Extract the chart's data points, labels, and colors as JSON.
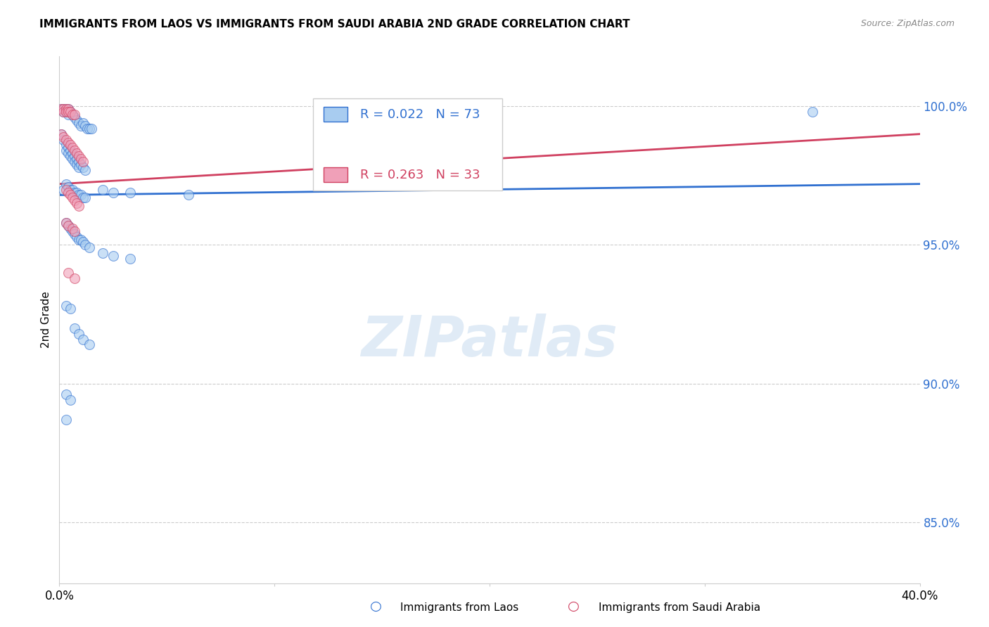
{
  "title": "IMMIGRANTS FROM LAOS VS IMMIGRANTS FROM SAUDI ARABIA 2ND GRADE CORRELATION CHART",
  "source": "Source: ZipAtlas.com",
  "ylabel": "2nd Grade",
  "xmin": 0.0,
  "xmax": 0.4,
  "ymin": 0.828,
  "ymax": 1.018,
  "yticks": [
    0.85,
    0.9,
    0.95,
    1.0
  ],
  "ytick_labels": [
    "85.0%",
    "90.0%",
    "95.0%",
    "100.0%"
  ],
  "color_blue": "#A8CCF0",
  "color_pink": "#F0A0B8",
  "color_blue_line": "#3070D0",
  "color_pink_line": "#D04060",
  "watermark_text": "ZIPatlas",
  "blue_trend": [
    0.0,
    0.4,
    0.968,
    0.972
  ],
  "pink_trend": [
    0.0,
    0.4,
    0.972,
    0.99
  ],
  "blue_points": [
    [
      0.001,
      0.999
    ],
    [
      0.002,
      0.999
    ],
    [
      0.002,
      0.998
    ],
    [
      0.003,
      0.999
    ],
    [
      0.003,
      0.998
    ],
    [
      0.004,
      0.999
    ],
    [
      0.004,
      0.998
    ],
    [
      0.004,
      0.997
    ],
    [
      0.005,
      0.998
    ],
    [
      0.006,
      0.997
    ],
    [
      0.007,
      0.996
    ],
    [
      0.008,
      0.995
    ],
    [
      0.009,
      0.994
    ],
    [
      0.01,
      0.993
    ],
    [
      0.011,
      0.994
    ],
    [
      0.012,
      0.993
    ],
    [
      0.013,
      0.992
    ],
    [
      0.014,
      0.992
    ],
    [
      0.015,
      0.992
    ],
    [
      0.001,
      0.99
    ],
    [
      0.002,
      0.988
    ],
    [
      0.003,
      0.986
    ],
    [
      0.003,
      0.984
    ],
    [
      0.004,
      0.985
    ],
    [
      0.004,
      0.983
    ],
    [
      0.005,
      0.984
    ],
    [
      0.005,
      0.982
    ],
    [
      0.006,
      0.983
    ],
    [
      0.006,
      0.981
    ],
    [
      0.007,
      0.982
    ],
    [
      0.007,
      0.98
    ],
    [
      0.008,
      0.981
    ],
    [
      0.008,
      0.979
    ],
    [
      0.009,
      0.98
    ],
    [
      0.009,
      0.978
    ],
    [
      0.01,
      0.979
    ],
    [
      0.011,
      0.978
    ],
    [
      0.012,
      0.977
    ],
    [
      0.002,
      0.97
    ],
    [
      0.003,
      0.972
    ],
    [
      0.004,
      0.971
    ],
    [
      0.005,
      0.97
    ],
    [
      0.006,
      0.97
    ],
    [
      0.007,
      0.969
    ],
    [
      0.008,
      0.969
    ],
    [
      0.009,
      0.968
    ],
    [
      0.01,
      0.968
    ],
    [
      0.011,
      0.967
    ],
    [
      0.012,
      0.967
    ],
    [
      0.02,
      0.97
    ],
    [
      0.025,
      0.969
    ],
    [
      0.033,
      0.969
    ],
    [
      0.06,
      0.968
    ],
    [
      0.35,
      0.998
    ],
    [
      0.003,
      0.958
    ],
    [
      0.004,
      0.957
    ],
    [
      0.005,
      0.956
    ],
    [
      0.006,
      0.955
    ],
    [
      0.007,
      0.954
    ],
    [
      0.008,
      0.953
    ],
    [
      0.009,
      0.952
    ],
    [
      0.01,
      0.952
    ],
    [
      0.011,
      0.951
    ],
    [
      0.012,
      0.95
    ],
    [
      0.014,
      0.949
    ],
    [
      0.02,
      0.947
    ],
    [
      0.025,
      0.946
    ],
    [
      0.033,
      0.945
    ],
    [
      0.003,
      0.928
    ],
    [
      0.005,
      0.927
    ],
    [
      0.007,
      0.92
    ],
    [
      0.009,
      0.918
    ],
    [
      0.011,
      0.916
    ],
    [
      0.014,
      0.914
    ],
    [
      0.003,
      0.896
    ],
    [
      0.005,
      0.894
    ],
    [
      0.003,
      0.887
    ]
  ],
  "pink_points": [
    [
      0.001,
      0.999
    ],
    [
      0.002,
      0.999
    ],
    [
      0.002,
      0.998
    ],
    [
      0.003,
      0.999
    ],
    [
      0.003,
      0.998
    ],
    [
      0.004,
      0.999
    ],
    [
      0.004,
      0.998
    ],
    [
      0.005,
      0.998
    ],
    [
      0.006,
      0.997
    ],
    [
      0.007,
      0.997
    ],
    [
      0.001,
      0.99
    ],
    [
      0.002,
      0.989
    ],
    [
      0.003,
      0.988
    ],
    [
      0.004,
      0.987
    ],
    [
      0.005,
      0.986
    ],
    [
      0.006,
      0.985
    ],
    [
      0.007,
      0.984
    ],
    [
      0.008,
      0.983
    ],
    [
      0.009,
      0.982
    ],
    [
      0.01,
      0.981
    ],
    [
      0.011,
      0.98
    ],
    [
      0.003,
      0.97
    ],
    [
      0.004,
      0.969
    ],
    [
      0.005,
      0.968
    ],
    [
      0.006,
      0.967
    ],
    [
      0.007,
      0.966
    ],
    [
      0.008,
      0.965
    ],
    [
      0.009,
      0.964
    ],
    [
      0.003,
      0.958
    ],
    [
      0.004,
      0.957
    ],
    [
      0.006,
      0.956
    ],
    [
      0.007,
      0.955
    ],
    [
      0.004,
      0.94
    ],
    [
      0.007,
      0.938
    ]
  ]
}
